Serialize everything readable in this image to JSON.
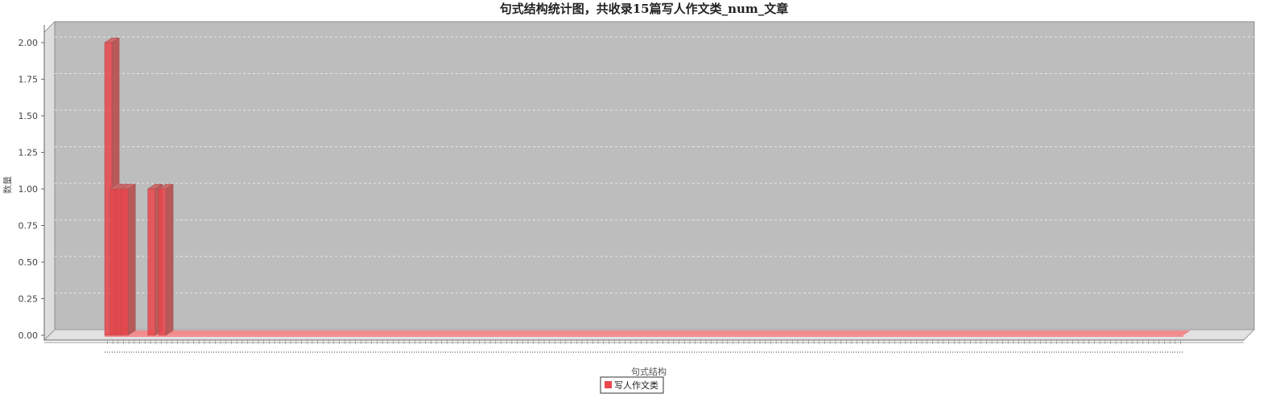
{
  "chart_data": {
    "type": "bar",
    "title": "句式结构统计图，共收录15篇写人作文类_num_文章",
    "xlabel": "句式结构",
    "ylabel": "数量",
    "ylim": [
      0,
      2
    ],
    "yticks": [
      "0.00",
      "0.25",
      "0.50",
      "0.75",
      "1.00",
      "1.25",
      "1.50",
      "1.75",
      "2.00"
    ],
    "grid": true,
    "legend_position": "bottom",
    "series": [
      {
        "name": "写人作文类",
        "color": "#e8474c",
        "values": [
          2,
          1,
          1,
          1,
          0,
          0,
          0,
          0,
          1,
          0,
          1,
          0,
          0,
          0,
          0,
          0,
          0,
          0,
          0,
          0,
          0,
          0,
          0,
          0,
          0,
          0,
          0,
          0,
          0,
          0,
          0,
          0,
          0,
          0,
          0,
          0,
          0,
          0,
          0,
          0,
          0,
          0,
          0,
          0,
          0,
          0,
          0,
          0,
          0,
          0,
          0,
          0,
          0,
          0,
          0,
          0,
          0,
          0,
          0,
          0,
          0,
          0,
          0,
          0,
          0,
          0,
          0,
          0,
          0,
          0,
          0,
          0,
          0,
          0,
          0,
          0,
          0,
          0,
          0,
          0,
          0,
          0,
          0,
          0,
          0,
          0,
          0,
          0,
          0,
          0,
          0,
          0,
          0,
          0,
          0,
          0,
          0,
          0,
          0,
          0,
          0,
          0,
          0,
          0,
          0,
          0,
          0,
          0,
          0,
          0,
          0,
          0,
          0,
          0,
          0,
          0,
          0,
          0,
          0,
          0,
          0,
          0,
          0,
          0,
          0,
          0,
          0,
          0,
          0,
          0,
          0,
          0,
          0,
          0,
          0,
          0,
          0,
          0,
          0,
          0,
          0,
          0,
          0,
          0,
          0,
          0,
          0,
          0,
          0,
          0,
          0,
          0,
          0,
          0,
          0,
          0,
          0,
          0,
          0,
          0,
          0,
          0,
          0,
          0,
          0,
          0,
          0,
          0,
          0,
          0,
          0,
          0,
          0,
          0,
          0,
          0,
          0,
          0,
          0,
          0,
          0,
          0,
          0,
          0,
          0,
          0,
          0,
          0,
          0,
          0,
          0,
          0,
          0,
          0,
          0,
          0,
          0,
          0,
          0,
          0
        ]
      }
    ]
  },
  "colors": {
    "plot_background": "#bdbdbd",
    "bar": "#e8474c",
    "bar_dark": "#b85a5a"
  }
}
